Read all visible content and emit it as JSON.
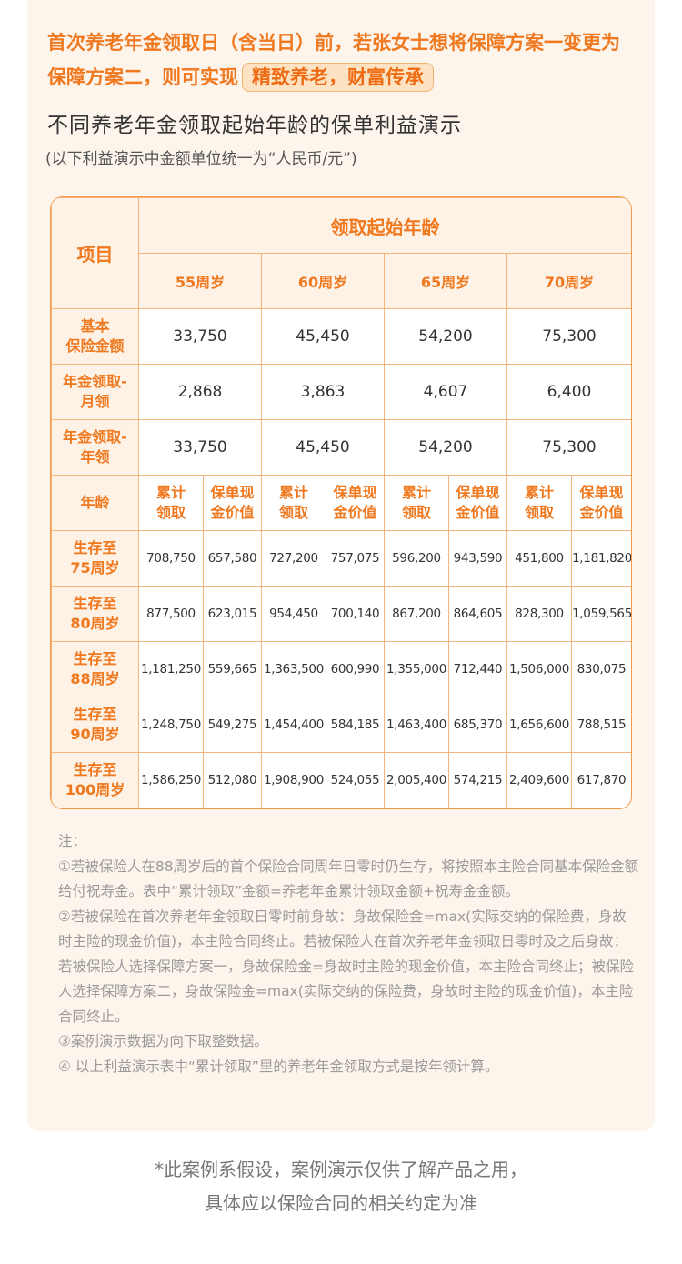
{
  "headline": {
    "text": "首次养老年金领取日（含当日）前，若张女士想将保障方案一变更为保障方案二，则可实现",
    "highlight": "精致养老，财富传承"
  },
  "subtitle": "不同养老年金领取起始年龄的保单利益演示",
  "unit_note": "(以下利益演示中金额单位统一为“人民币/元”)",
  "table": {
    "item_header": "项目",
    "group_header": "领取起始年龄",
    "ages": [
      "55周岁",
      "60周岁",
      "65周岁",
      "70周岁"
    ],
    "summary_rows": [
      {
        "label": "基本\n保险金额",
        "values": [
          "33,750",
          "45,450",
          "54,200",
          "75,300"
        ]
      },
      {
        "label": "年金领取-\n月领",
        "values": [
          "2,868",
          "3,863",
          "4,607",
          "6,400"
        ]
      },
      {
        "label": "年金领取-\n年领",
        "values": [
          "33,750",
          "45,450",
          "54,200",
          "75,300"
        ]
      }
    ],
    "age_label": "年龄",
    "sub_headers": [
      "累计\n领取",
      "保单现\n金价值"
    ],
    "rows": [
      {
        "label": "生存至\n75周岁",
        "values": [
          "708,750",
          "657,580",
          "727,200",
          "757,075",
          "596,200",
          "943,590",
          "451,800",
          "1,181,820"
        ]
      },
      {
        "label": "生存至\n80周岁",
        "values": [
          "877,500",
          "623,015",
          "954,450",
          "700,140",
          "867,200",
          "864,605",
          "828,300",
          "1,059,565"
        ]
      },
      {
        "label": "生存至\n88周岁",
        "values": [
          "1,181,250",
          "559,665",
          "1,363,500",
          "600,990",
          "1,355,000",
          "712,440",
          "1,506,000",
          "830,075"
        ]
      },
      {
        "label": "生存至\n90周岁",
        "values": [
          "1,248,750",
          "549,275",
          "1,454,400",
          "584,185",
          "1,463,400",
          "685,370",
          "1,656,600",
          "788,515"
        ]
      },
      {
        "label": "生存至\n100周岁",
        "values": [
          "1,586,250",
          "512,080",
          "1,908,900",
          "524,055",
          "2,005,400",
          "574,215",
          "2,409,600",
          "617,870"
        ]
      }
    ]
  },
  "notes": [
    "注：",
    "①若被保险人在88周岁后的首个保险合同周年日零时仍生存，将按照本主险合同基本保险金额给付祝寿金。表中“累计领取”金额=养老年金累计领取金额+祝寿金金额。",
    "②若被保险在首次养老年金领取日零时前身故：身故保险金=max(实际交纳的保险费，身故时主险的现金价值)，本主险合同终止。若被保险人在首次养老年金领取日零时及之后身故：若被保险人选择保障方案一，身故保险金=身故时主险的现金价值，本主险合同终止；被保险人选择保障方案二，身故保险金=max(实际交纳的保险费，身故时主险的现金价值)，本主险合同终止。",
    "③案例演示数据为向下取整数据。",
    "④ 以上利益演示表中“累计领取”里的养老年金领取方式是按年领计算。"
  ],
  "footer": [
    "*此案例系假设，案例演示仅供了解产品之用，",
    "具体应以保险合同的相关约定为准"
  ]
}
